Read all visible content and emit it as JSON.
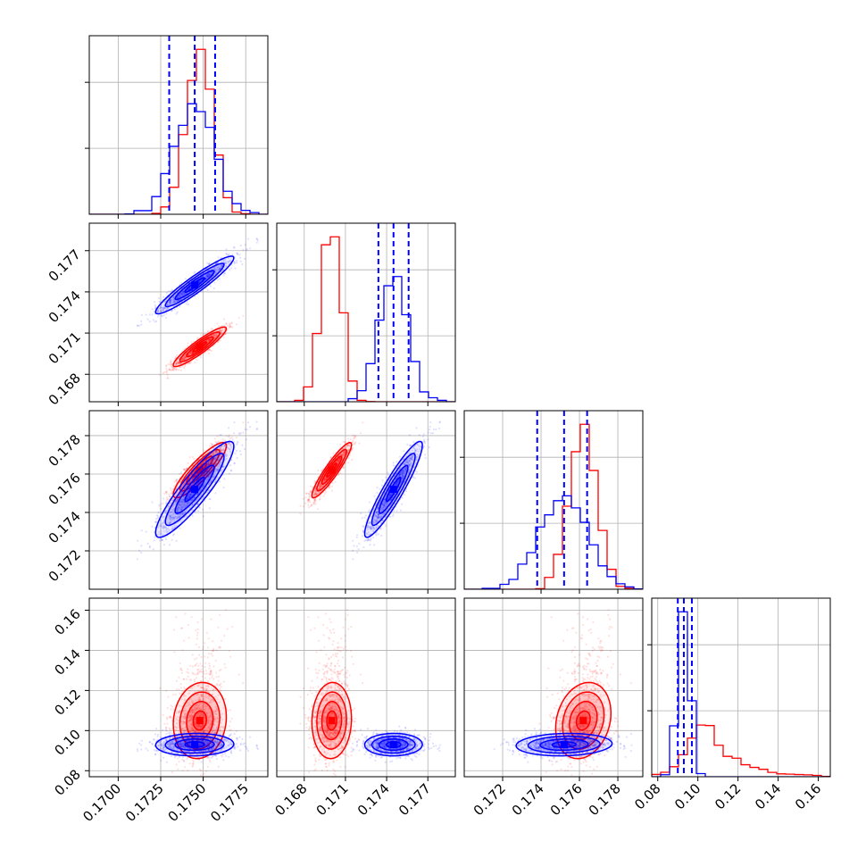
{
  "colors": {
    "red": "#ff0000",
    "blue": "#0000ff",
    "grid": "#b0b0b0"
  },
  "chart_data": {
    "type": "corner",
    "title": "",
    "grid": true,
    "legend": "none",
    "quantile_lines": {
      "series": "blue",
      "style": "dashed"
    },
    "parameters": [
      {
        "index": 0,
        "range": [
          0.1683,
          0.1788
        ],
        "ticks": [
          "0.1700",
          "0.1725",
          "0.1750",
          "0.1775"
        ],
        "tick_values": [
          0.17,
          0.1725,
          0.175,
          0.1775
        ]
      },
      {
        "index": 1,
        "range": [
          0.166,
          0.179
        ],
        "ticks": [
          "0.168",
          "0.171",
          "0.174",
          "0.177"
        ],
        "tick_values": [
          0.168,
          0.171,
          0.174,
          0.177
        ]
      },
      {
        "index": 2,
        "range": [
          0.17,
          0.1793
        ],
        "ticks": [
          "0.172",
          "0.174",
          "0.176",
          "0.178"
        ],
        "tick_values": [
          0.172,
          0.174,
          0.176,
          0.178
        ]
      },
      {
        "index": 3,
        "range": [
          0.077,
          0.166
        ],
        "ticks": [
          "0.08",
          "0.10",
          "0.12",
          "0.14",
          "0.16"
        ],
        "tick_values": [
          0.08,
          0.1,
          0.12,
          0.14,
          0.16
        ]
      }
    ],
    "series": [
      {
        "color": "red",
        "mean": [
          0.1748,
          0.17,
          0.1762,
          0.105
        ],
        "std": [
          0.00078,
          0.00072,
          0.00072,
          0.0095
        ],
        "correlation": [
          [
            1,
            0.92,
            0.88,
            0.1
          ],
          [
            0.92,
            1,
            0.92,
            0.05
          ],
          [
            0.88,
            0.92,
            1,
            0.2
          ],
          [
            0.1,
            0.05,
            0.2,
            1
          ]
        ],
        "quantiles": null
      },
      {
        "color": "blue",
        "mean": [
          0.1745,
          0.1745,
          0.1752,
          0.093
        ],
        "std": [
          0.00115,
          0.00105,
          0.00125,
          0.0028
        ],
        "correlation": [
          [
            1,
            0.94,
            0.9,
            0.05
          ],
          [
            0.94,
            1,
            0.92,
            0.02
          ],
          [
            0.9,
            0.92,
            1,
            0.1
          ],
          [
            0.05,
            0.02,
            0.1,
            1
          ]
        ],
        "quantiles": [
          [
            0.173,
            0.1745,
            0.1757
          ],
          [
            0.1734,
            0.1745,
            0.1756
          ],
          [
            0.1738,
            0.1752,
            0.1764
          ],
          [
            0.09,
            0.093,
            0.097
          ]
        ]
      }
    ]
  }
}
